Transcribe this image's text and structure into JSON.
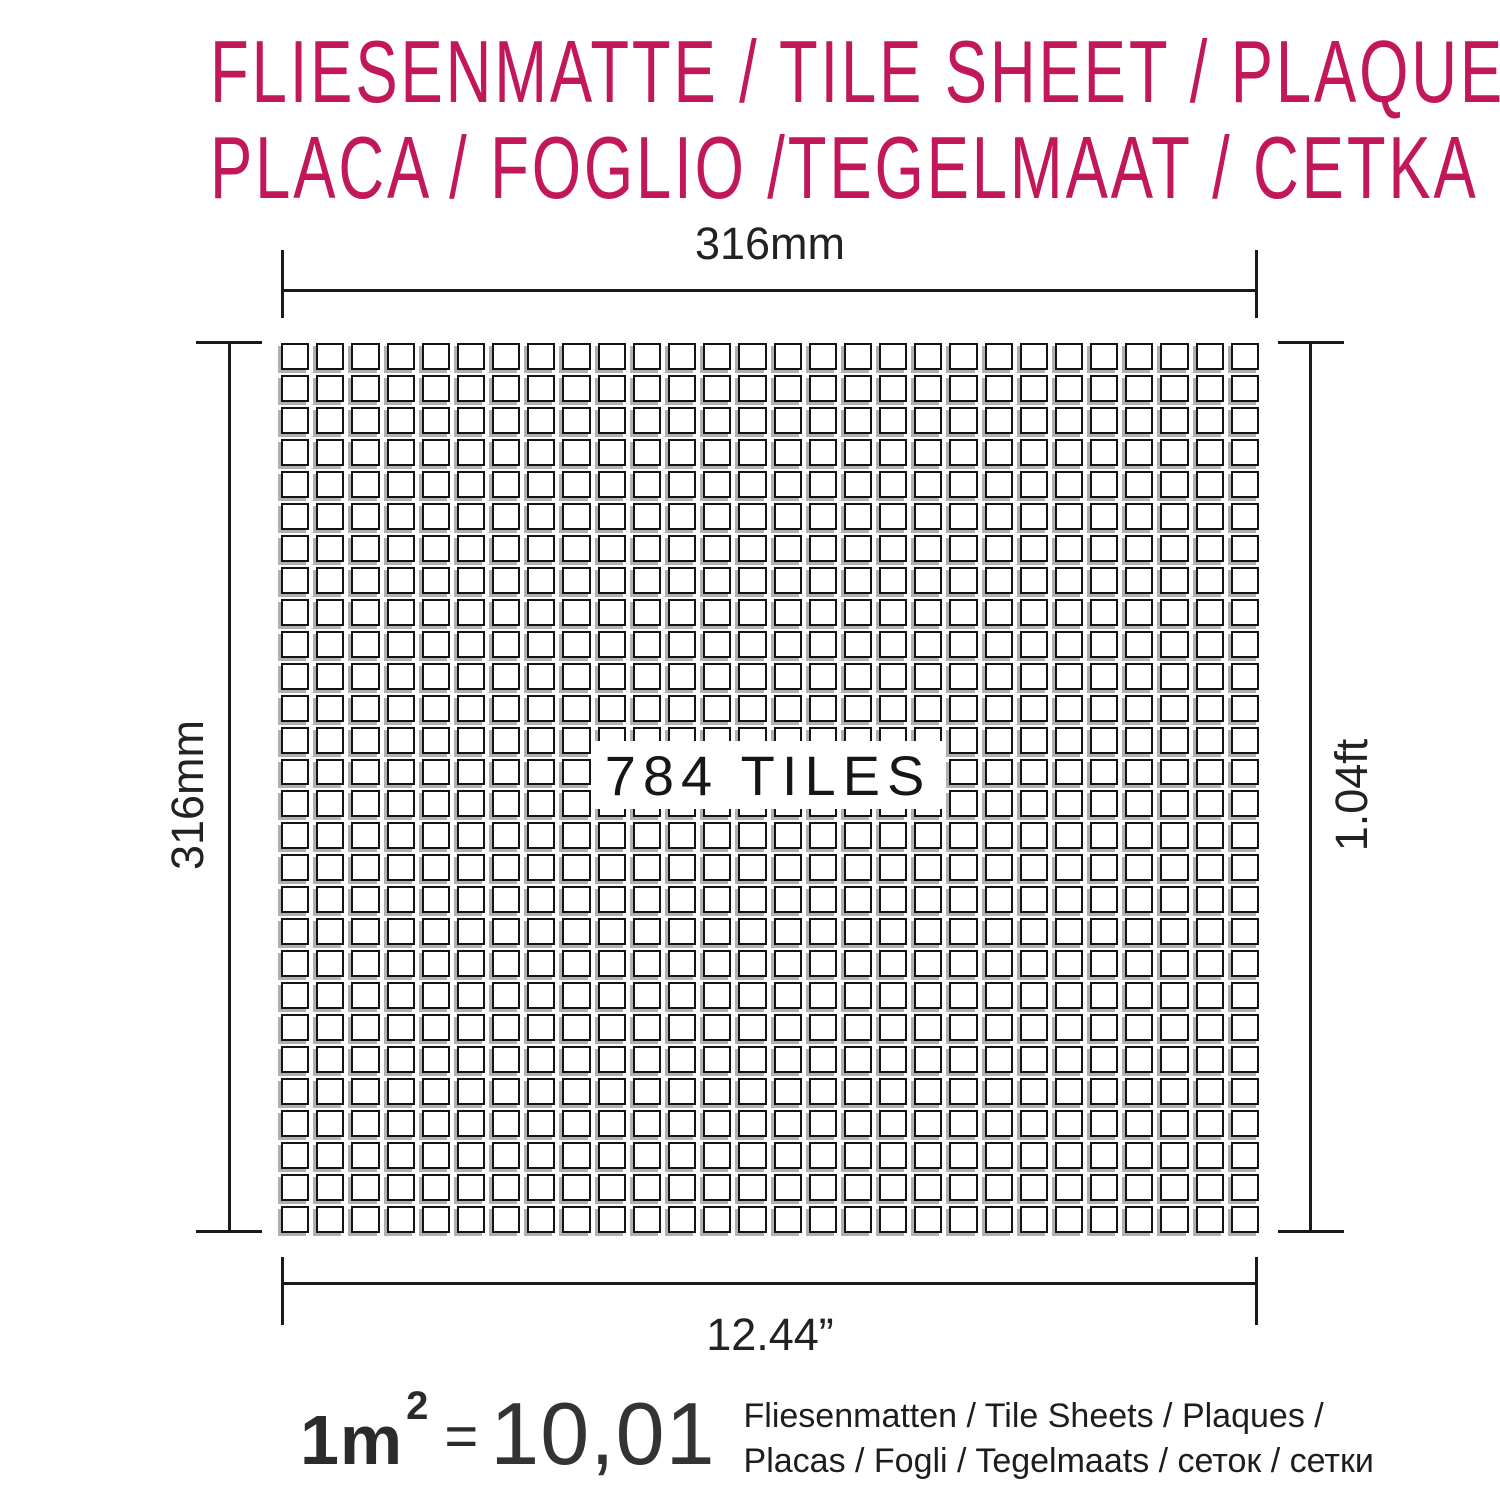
{
  "title": {
    "line1": "FLIESENMATTE / TILE SHEET / PLAQUE",
    "line2": "PLACA / FOGLIO /TEGELMAAT / CETKA"
  },
  "dimensions": {
    "top": "316mm",
    "left": "316mm",
    "right": "1.04ft",
    "bottom": "12.44”"
  },
  "sheet": {
    "label": "784 TILES",
    "grid_rows": 28,
    "grid_cols": 28
  },
  "conversion": {
    "lhs": "1m",
    "exponent": "2",
    "equals": "=",
    "value": "10,01",
    "units_line1": "Fliesenmatten / Tile Sheets / Plaques /",
    "units_line2": "Placas / Fogli / Tegelmaats / сеток / сетки"
  },
  "colors": {
    "accent": "#c2175b",
    "line": "#1a1a1a",
    "tile_border": "#141414",
    "tile_shadow": "#b0b0b0"
  }
}
